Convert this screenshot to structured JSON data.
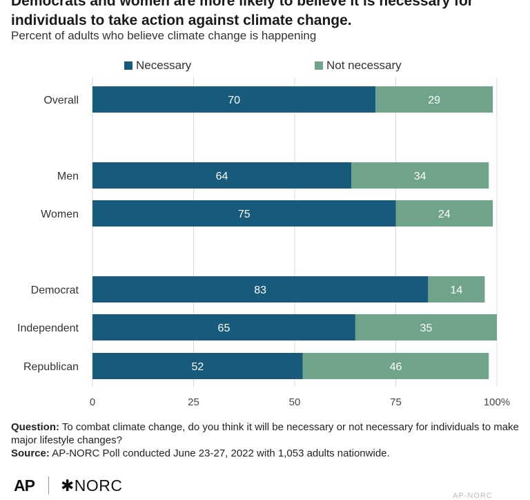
{
  "title": "Democrats and women are more likely to believe it is necessary for individuals to take action against climate change.",
  "subtitle": "Percent of adults who believe climate change is happening",
  "colors": {
    "necessary": "#175a7c",
    "not_necessary": "#6fa48a",
    "grid": "#d9d9d9"
  },
  "chart_data": {
    "type": "bar",
    "orientation": "horizontal",
    "stacked": true,
    "categories": [
      "Overall",
      "Men",
      "Women",
      "Democrat",
      "Independent",
      "Republican"
    ],
    "series": [
      {
        "name": "Necessary",
        "values": [
          70,
          64,
          75,
          83,
          65,
          52
        ]
      },
      {
        "name": "Not necessary",
        "values": [
          29,
          34,
          24,
          14,
          35,
          46
        ]
      }
    ],
    "xlim": [
      0,
      100
    ],
    "xticks": [
      "0",
      "25",
      "50",
      "75",
      "100%"
    ],
    "legend": "top",
    "grid": true
  },
  "notes": {
    "question_label": "Question:",
    "question_text": "To combat climate change, do you think it will be necessary or not necessary for individuals to make major lifestyle changes?",
    "source_label": "Source:",
    "source_text": "AP-NORC Poll conducted June 23-27, 2022 with 1,053 adults nationwide."
  },
  "logos": {
    "ap": "AP",
    "norc": "NORC",
    "watermark": "AP-NORC"
  }
}
